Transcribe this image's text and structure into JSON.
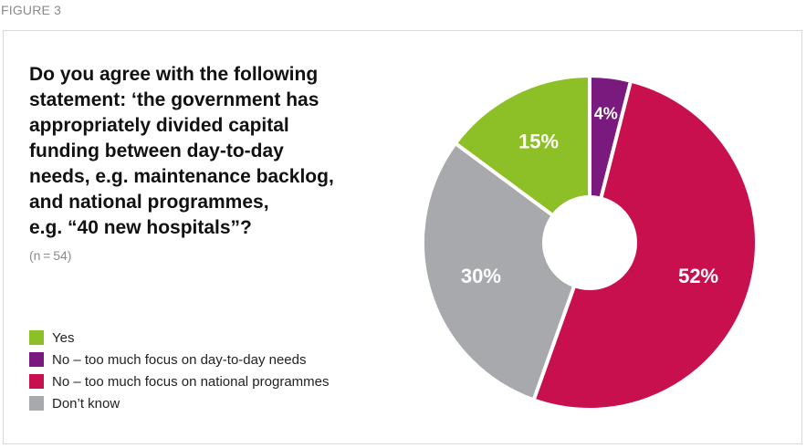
{
  "figure_label": "FIGURE 3",
  "question_lines": [
    "Do you agree with the following",
    "statement: ‘the government has",
    "appropriately divided capital",
    "funding between day-to-day",
    "needs, e.g. maintenance backlog,",
    "and national programmes,",
    "e.g. “40 new hospitals”?"
  ],
  "sample_size": "(n = 54)",
  "chart_data": {
    "type": "pie",
    "donut": true,
    "start": "12 o'clock",
    "direction": "clockwise",
    "order": [
      "No – too much focus on day-to-day needs",
      "No – too much focus on national programmes",
      "Don’t know",
      "Yes"
    ],
    "slices": [
      {
        "label": "Yes",
        "value": 15,
        "display": "15%",
        "color": "#8dbf26"
      },
      {
        "label": "No – too much focus on day-to-day needs",
        "value": 4,
        "display": "4%",
        "color": "#7a1a7f"
      },
      {
        "label": "No – too much focus on national programmes",
        "value": 52,
        "display": "52%",
        "color": "#c8104e"
      },
      {
        "label": "Don’t know",
        "value": 30,
        "display": "30%",
        "color": "#a7a9ac"
      }
    ],
    "legend_placement": "bottom-left"
  }
}
